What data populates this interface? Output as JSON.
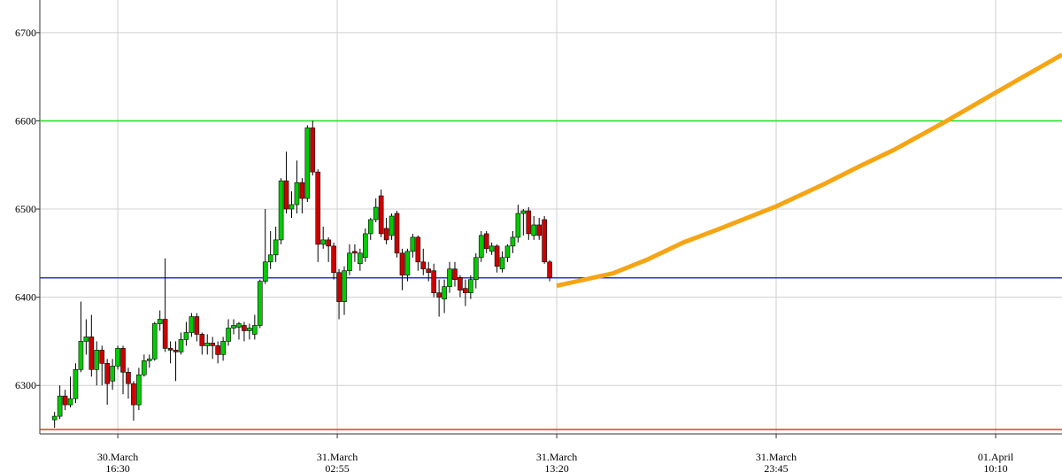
{
  "chart_data": {
    "type": "candlestick",
    "xlim": [
      768,
      3679
    ],
    "ylim": [
      6245,
      6737
    ],
    "yticks": [
      6300,
      6400,
      6500,
      6600,
      6700
    ],
    "xticks": [
      {
        "value": 990,
        "label": [
          "30.March",
          "16:30"
        ]
      },
      {
        "value": 1615,
        "label": [
          "31.March",
          "02:55"
        ]
      },
      {
        "value": 2240,
        "label": [
          "31.March",
          "13:20"
        ]
      },
      {
        "value": 2865,
        "label": [
          "31.March",
          "23:45"
        ]
      },
      {
        "value": 3490,
        "label": [
          "01.April",
          "10:10"
        ]
      }
    ],
    "grid": true,
    "up_color": "#00cc00",
    "down_color": "#cc0000",
    "x": [
      810,
      825,
      840,
      855,
      870,
      885,
      900,
      915,
      930,
      945,
      960,
      975,
      990,
      1005,
      1020,
      1035,
      1050,
      1065,
      1080,
      1095,
      1110,
      1125,
      1140,
      1155,
      1170,
      1185,
      1200,
      1215,
      1230,
      1245,
      1260,
      1275,
      1290,
      1305,
      1320,
      1335,
      1350,
      1365,
      1380,
      1395,
      1410,
      1425,
      1440,
      1455,
      1470,
      1485,
      1500,
      1515,
      1530,
      1545,
      1560,
      1575,
      1590,
      1605,
      1620,
      1635,
      1650,
      1665,
      1680,
      1695,
      1710,
      1725,
      1740,
      1755,
      1770,
      1785,
      1800,
      1815,
      1830,
      1845,
      1860,
      1875,
      1890,
      1905,
      1920,
      1935,
      1950,
      1965,
      1980,
      1995,
      2010,
      2025,
      2040,
      2055,
      2070,
      2085,
      2100,
      2115,
      2130,
      2145,
      2160,
      2175,
      2190,
      2205,
      2220
    ],
    "open": [
      6261,
      6265,
      6288,
      6278,
      6285,
      6318,
      6350,
      6355,
      6318,
      6340,
      6325,
      6305,
      6322,
      6342,
      6315,
      6302,
      6278,
      6312,
      6328,
      6330,
      6370,
      6375,
      6342,
      6340,
      6338,
      6352,
      6360,
      6378,
      6358,
      6345,
      6348,
      6345,
      6335,
      6350,
      6365,
      6366,
      6368,
      6362,
      6358,
      6368,
      6418,
      6440,
      6448,
      6465,
      6532,
      6500,
      6505,
      6530,
      6512,
      6592,
      6542,
      6460,
      6465,
      6458,
      6428,
      6395,
      6430,
      6452,
      6438,
      6445,
      6472,
      6488,
      6515,
      6478,
      6470,
      6495,
      6450,
      6425,
      6452,
      6468,
      6440,
      6432,
      6430,
      6405,
      6398,
      6412,
      6432,
      6422,
      6410,
      6405,
      6420,
      6445,
      6472,
      6452,
      6458,
      6432,
      6445,
      6458,
      6468,
      6495,
      6498,
      6470,
      6482,
      6488,
      6440
    ],
    "high": [
      6270,
      6300,
      6295,
      6310,
      6325,
      6395,
      6375,
      6380,
      6350,
      6345,
      6330,
      6330,
      6345,
      6345,
      6320,
      6305,
      6320,
      6335,
      6335,
      6372,
      6385,
      6444,
      6350,
      6350,
      6360,
      6372,
      6382,
      6382,
      6360,
      6358,
      6355,
      6350,
      6355,
      6375,
      6375,
      6372,
      6372,
      6370,
      6380,
      6420,
      6500,
      6475,
      6480,
      6535,
      6565,
      6520,
      6555,
      6535,
      6595,
      6600,
      6545,
      6480,
      6468,
      6462,
      6432,
      6435,
      6460,
      6460,
      6455,
      6478,
      6490,
      6512,
      6522,
      6490,
      6495,
      6498,
      6455,
      6455,
      6472,
      6470,
      6455,
      6440,
      6438,
      6420,
      6420,
      6440,
      6440,
      6425,
      6420,
      6425,
      6450,
      6475,
      6475,
      6462,
      6460,
      6452,
      6460,
      6475,
      6505,
      6500,
      6502,
      6492,
      6490,
      6492,
      6442
    ],
    "low": [
      6252,
      6262,
      6272,
      6275,
      6280,
      6315,
      6335,
      6310,
      6300,
      6300,
      6278,
      6295,
      6318,
      6290,
      6285,
      6260,
      6272,
      6310,
      6320,
      6328,
      6362,
      6338,
      6325,
      6305,
      6335,
      6345,
      6355,
      6350,
      6335,
      6335,
      6330,
      6325,
      6328,
      6345,
      6358,
      6352,
      6350,
      6352,
      6352,
      6365,
      6415,
      6432,
      6440,
      6460,
      6495,
      6490,
      6495,
      6495,
      6508,
      6538,
      6440,
      6455,
      6440,
      6420,
      6375,
      6380,
      6425,
      6440,
      6430,
      6440,
      6465,
      6485,
      6468,
      6460,
      6465,
      6445,
      6408,
      6418,
      6445,
      6430,
      6425,
      6418,
      6400,
      6378,
      6382,
      6405,
      6412,
      6400,
      6390,
      6398,
      6410,
      6440,
      6450,
      6448,
      6428,
      6428,
      6440,
      6450,
      6462,
      6470,
      6465,
      6465,
      6465,
      6438,
      6418
    ],
    "close": [
      6265,
      6288,
      6278,
      6285,
      6318,
      6350,
      6355,
      6318,
      6340,
      6325,
      6302,
      6322,
      6342,
      6315,
      6302,
      6278,
      6312,
      6328,
      6330,
      6370,
      6375,
      6342,
      6340,
      6338,
      6352,
      6360,
      6378,
      6358,
      6345,
      6348,
      6345,
      6335,
      6350,
      6365,
      6368,
      6370,
      6362,
      6365,
      6368,
      6418,
      6440,
      6448,
      6465,
      6532,
      6500,
      6505,
      6530,
      6512,
      6592,
      6542,
      6460,
      6465,
      6458,
      6428,
      6395,
      6430,
      6450,
      6450,
      6450,
      6472,
      6488,
      6502,
      6472,
      6465,
      6492,
      6450,
      6425,
      6452,
      6468,
      6440,
      6432,
      6428,
      6405,
      6400,
      6412,
      6432,
      6420,
      6408,
      6405,
      6420,
      6445,
      6470,
      6455,
      6458,
      6435,
      6445,
      6458,
      6468,
      6495,
      6498,
      6472,
      6482,
      6470,
      6440,
      6422
    ],
    "levels": [
      {
        "value": 6600,
        "color": "#22dd22"
      },
      {
        "value": 6422,
        "color": "#3333dd"
      },
      {
        "value": 6250,
        "color": "#ee3322"
      }
    ],
    "forecast": {
      "color": "#f5a514",
      "x": [
        2240,
        2400,
        2500,
        2600,
        2700,
        2865,
        3000,
        3100,
        3200,
        3351,
        3490,
        3679
      ],
      "values": [
        6413,
        6427,
        6443,
        6462,
        6477,
        6503,
        6528,
        6548,
        6567,
        6600,
        6632,
        6675
      ]
    }
  }
}
